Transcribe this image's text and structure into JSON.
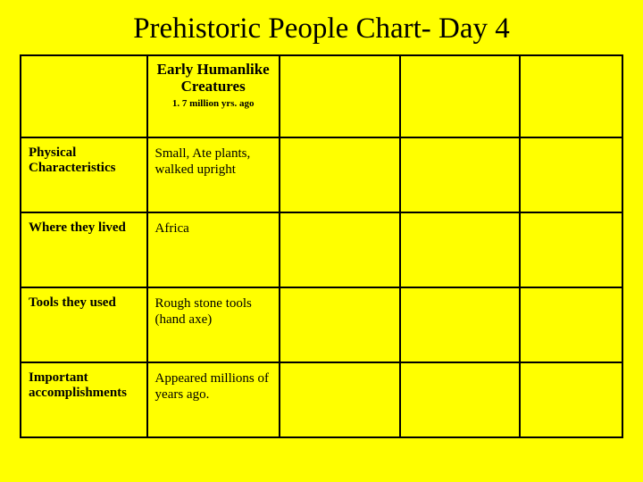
{
  "title": "Prehistoric People Chart- Day 4",
  "table": {
    "type": "table",
    "background_color": "#ffff00",
    "border_color": "#000000",
    "text_color": "#000000",
    "title_fontsize": 33,
    "header_fontsize": 17,
    "subheader_fontsize": 11,
    "label_fontsize": 15,
    "cell_fontsize": 15,
    "column_widths_pct": [
      21,
      22,
      20,
      20,
      17
    ],
    "columns": [
      {
        "name": "",
        "sub": ""
      },
      {
        "name": "Early Humanlike Creatures",
        "sub": "1. 7 million yrs. ago"
      },
      {
        "name": "",
        "sub": ""
      },
      {
        "name": "",
        "sub": ""
      },
      {
        "name": "",
        "sub": ""
      }
    ],
    "rows": [
      {
        "label": "Physical Characteristics",
        "cells": [
          "Small, Ate plants, walked upright",
          "",
          "",
          ""
        ]
      },
      {
        "label": "Where they lived",
        "cells": [
          "Africa",
          "",
          "",
          ""
        ]
      },
      {
        "label": "Tools they used",
        "cells": [
          "Rough stone tools (hand axe)",
          "",
          "",
          ""
        ]
      },
      {
        "label": "Important accomplishments",
        "cells": [
          "Appeared millions of years ago.",
          "",
          "",
          ""
        ]
      }
    ]
  }
}
